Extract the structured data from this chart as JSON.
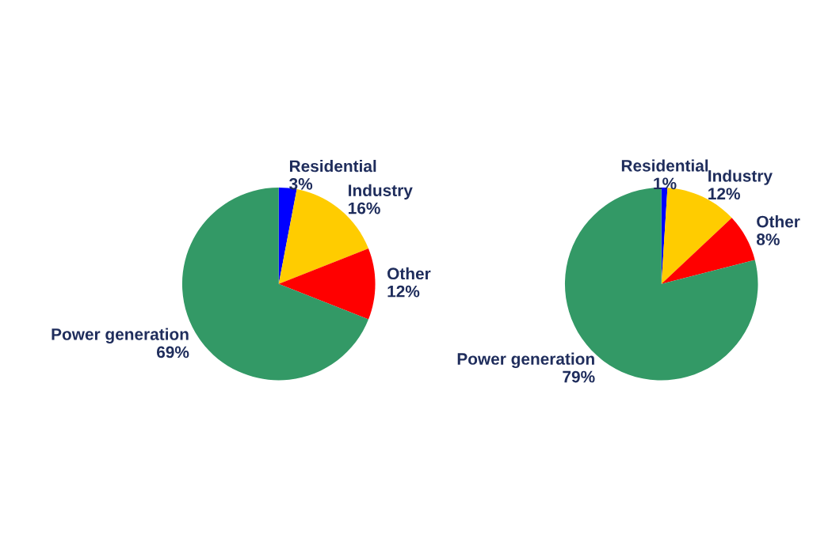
{
  "chart_data": [
    {
      "type": "pie",
      "categories": [
        "Residential",
        "Industry",
        "Other",
        "Power generation"
      ],
      "values": [
        3,
        16,
        12,
        69
      ],
      "value_labels": [
        "3%",
        "16%",
        "12%",
        "69%"
      ],
      "colors": [
        "#0000ff",
        "#ffcc00",
        "#ff0000",
        "#339966"
      ]
    },
    {
      "type": "pie",
      "categories": [
        "Residential",
        "Industry",
        "Other",
        "Power generation"
      ],
      "values": [
        1,
        12,
        8,
        79
      ],
      "value_labels": [
        "1%",
        "12%",
        "8%",
        "79%"
      ],
      "colors": [
        "#0000ff",
        "#ffcc00",
        "#ff0000",
        "#339966"
      ]
    }
  ]
}
